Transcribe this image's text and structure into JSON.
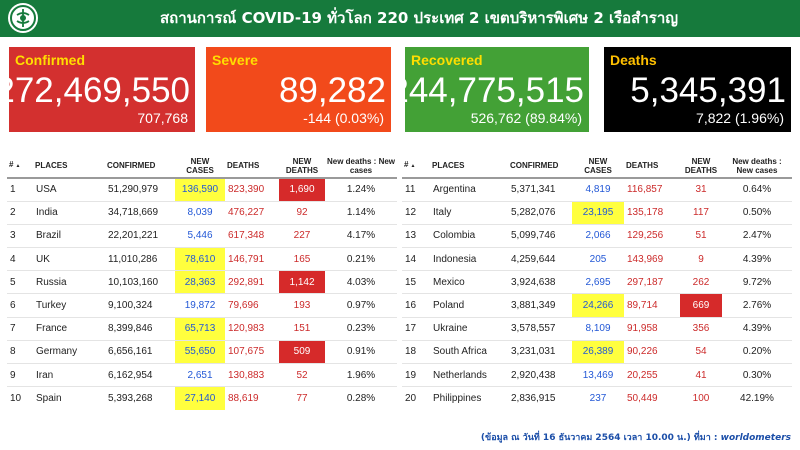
{
  "header": {
    "title": "สถานการณ์ COVID-19 ทั่วโลก 220 ประเทศ 2 เขตบริหารพิเศษ 2 เรือสำราญ"
  },
  "cards": {
    "confirmed": {
      "label": "Confirmed",
      "value": "272,469,550",
      "sub": "707,768"
    },
    "severe": {
      "label": "Severe",
      "value": "89,282",
      "sub": "-144 (0.03%)"
    },
    "recovered": {
      "label": "Recovered",
      "value": "244,775,515",
      "sub": "526,762 (89.84%)"
    },
    "deaths": {
      "label": "Deaths",
      "value": "5,345,391",
      "sub": "7,822 (1.96%)"
    }
  },
  "table_headers": {
    "rank": "#",
    "places": "PLACES",
    "confirmed": "CONFIRMED",
    "new_cases": "NEW CASES",
    "deaths": "DEATHS",
    "new_deaths": "NEW DEATHS",
    "ratio": "New deaths : New cases"
  },
  "left_rows": [
    {
      "rank": "1",
      "place": "USA",
      "confirmed": "51,290,979",
      "new_cases": "136,590",
      "deaths": "823,390",
      "new_deaths": "1,690",
      "ratio": "1.24%",
      "nc_hl": "yellow",
      "nd_hl": "red"
    },
    {
      "rank": "2",
      "place": "India",
      "confirmed": "34,718,669",
      "new_cases": "8,039",
      "deaths": "476,227",
      "new_deaths": "92",
      "ratio": "1.14%",
      "nc_hl": "",
      "nd_hl": ""
    },
    {
      "rank": "3",
      "place": "Brazil",
      "confirmed": "22,201,221",
      "new_cases": "5,446",
      "deaths": "617,348",
      "new_deaths": "227",
      "ratio": "4.17%",
      "nc_hl": "",
      "nd_hl": ""
    },
    {
      "rank": "4",
      "place": "UK",
      "confirmed": "11,010,286",
      "new_cases": "78,610",
      "deaths": "146,791",
      "new_deaths": "165",
      "ratio": "0.21%",
      "nc_hl": "yellow",
      "nd_hl": ""
    },
    {
      "rank": "5",
      "place": "Russia",
      "confirmed": "10,103,160",
      "new_cases": "28,363",
      "deaths": "292,891",
      "new_deaths": "1,142",
      "ratio": "4.03%",
      "nc_hl": "yellow",
      "nd_hl": "red"
    },
    {
      "rank": "6",
      "place": "Turkey",
      "confirmed": "9,100,324",
      "new_cases": "19,872",
      "deaths": "79,696",
      "new_deaths": "193",
      "ratio": "0.97%",
      "nc_hl": "",
      "nd_hl": ""
    },
    {
      "rank": "7",
      "place": "France",
      "confirmed": "8,399,846",
      "new_cases": "65,713",
      "deaths": "120,983",
      "new_deaths": "151",
      "ratio": "0.23%",
      "nc_hl": "yellow",
      "nd_hl": ""
    },
    {
      "rank": "8",
      "place": "Germany",
      "confirmed": "6,656,161",
      "new_cases": "55,650",
      "deaths": "107,675",
      "new_deaths": "509",
      "ratio": "0.91%",
      "nc_hl": "yellow",
      "nd_hl": "red"
    },
    {
      "rank": "9",
      "place": "Iran",
      "confirmed": "6,162,954",
      "new_cases": "2,651",
      "deaths": "130,883",
      "new_deaths": "52",
      "ratio": "1.96%",
      "nc_hl": "",
      "nd_hl": ""
    },
    {
      "rank": "10",
      "place": "Spain",
      "confirmed": "5,393,268",
      "new_cases": "27,140",
      "deaths": "88,619",
      "new_deaths": "77",
      "ratio": "0.28%",
      "nc_hl": "yellow",
      "nd_hl": ""
    }
  ],
  "right_rows": [
    {
      "rank": "11",
      "place": "Argentina",
      "confirmed": "5,371,341",
      "new_cases": "4,819",
      "deaths": "116,857",
      "new_deaths": "31",
      "ratio": "0.64%",
      "nc_hl": "",
      "nd_hl": ""
    },
    {
      "rank": "12",
      "place": "Italy",
      "confirmed": "5,282,076",
      "new_cases": "23,195",
      "deaths": "135,178",
      "new_deaths": "117",
      "ratio": "0.50%",
      "nc_hl": "yellow",
      "nd_hl": ""
    },
    {
      "rank": "13",
      "place": "Colombia",
      "confirmed": "5,099,746",
      "new_cases": "2,066",
      "deaths": "129,256",
      "new_deaths": "51",
      "ratio": "2.47%",
      "nc_hl": "",
      "nd_hl": ""
    },
    {
      "rank": "14",
      "place": "Indonesia",
      "confirmed": "4,259,644",
      "new_cases": "205",
      "deaths": "143,969",
      "new_deaths": "9",
      "ratio": "4.39%",
      "nc_hl": "",
      "nd_hl": ""
    },
    {
      "rank": "15",
      "place": "Mexico",
      "confirmed": "3,924,638",
      "new_cases": "2,695",
      "deaths": "297,187",
      "new_deaths": "262",
      "ratio": "9.72%",
      "nc_hl": "",
      "nd_hl": ""
    },
    {
      "rank": "16",
      "place": "Poland",
      "confirmed": "3,881,349",
      "new_cases": "24,266",
      "deaths": "89,714",
      "new_deaths": "669",
      "ratio": "2.76%",
      "nc_hl": "yellow",
      "nd_hl": "red"
    },
    {
      "rank": "17",
      "place": "Ukraine",
      "confirmed": "3,578,557",
      "new_cases": "8,109",
      "deaths": "91,958",
      "new_deaths": "356",
      "ratio": "4.39%",
      "nc_hl": "",
      "nd_hl": ""
    },
    {
      "rank": "18",
      "place": "South Africa",
      "confirmed": "3,231,031",
      "new_cases": "26,389",
      "deaths": "90,226",
      "new_deaths": "54",
      "ratio": "0.20%",
      "nc_hl": "yellow",
      "nd_hl": ""
    },
    {
      "rank": "19",
      "place": "Netherlands",
      "confirmed": "2,920,438",
      "new_cases": "13,469",
      "deaths": "20,255",
      "new_deaths": "41",
      "ratio": "0.30%",
      "nc_hl": "",
      "nd_hl": ""
    },
    {
      "rank": "20",
      "place": "Philippines",
      "confirmed": "2,836,915",
      "new_cases": "237",
      "deaths": "50,449",
      "new_deaths": "100",
      "ratio": "42.19%",
      "nc_hl": "",
      "nd_hl": ""
    }
  ],
  "footer": {
    "note": "(ข้อมูล ณ วันที่ 16 ธันวาคม 2564 เวลา 10.00 น.) ที่มา : ",
    "source": "worldometers"
  },
  "colors": {
    "header_bg": "#167a3c",
    "confirmed_bg": "#d3302f",
    "severe_bg": "#f24a1b",
    "recovered_bg": "#43a136",
    "deaths_bg": "#000000",
    "new_cases_text": "#2358d6",
    "deaths_text": "#cc2b2b",
    "highlight_yellow": "#ffff3e",
    "highlight_red": "#d62a2a"
  },
  "icons": {
    "logo": "ministry-emblem-icon",
    "sort": "sort-arrow-icon"
  }
}
